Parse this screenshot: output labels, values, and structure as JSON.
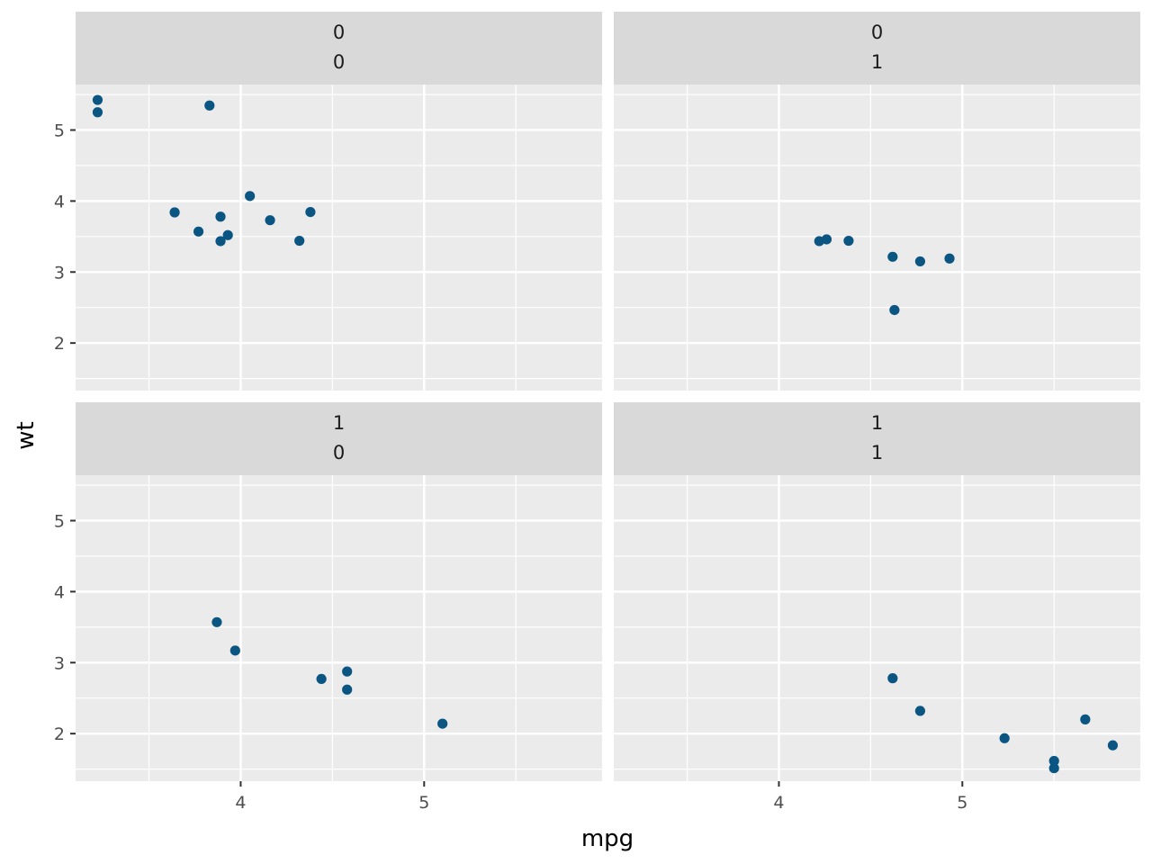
{
  "chart_data": {
    "type": "scatter",
    "xlabel": "mpg",
    "ylabel": "wt",
    "xlim": [
      3.1,
      5.97
    ],
    "ylim": [
      1.33,
      5.64
    ],
    "x_ticks": [
      4,
      5
    ],
    "x_tick_labels": [
      "4",
      "5"
    ],
    "y_ticks": [
      2,
      3,
      4,
      5
    ],
    "y_tick_labels": [
      "2",
      "3",
      "4",
      "5"
    ],
    "grid": true,
    "colors": {
      "point": "#0b5582",
      "panel_bg": "#ebebeb",
      "strip_bg": "#d9d9d9",
      "grid": "#ffffff",
      "tick_label": "#4d4d4d"
    },
    "panels": [
      {
        "strip": [
          "0",
          "0"
        ],
        "points": [
          {
            "x": 3.22,
            "y": 5.424
          },
          {
            "x": 3.22,
            "y": 5.25
          },
          {
            "x": 3.83,
            "y": 5.345
          },
          {
            "x": 3.64,
            "y": 3.84
          },
          {
            "x": 3.77,
            "y": 3.57
          },
          {
            "x": 3.89,
            "y": 3.78
          },
          {
            "x": 3.89,
            "y": 3.435
          },
          {
            "x": 3.93,
            "y": 3.52
          },
          {
            "x": 4.05,
            "y": 4.07
          },
          {
            "x": 4.16,
            "y": 3.73
          },
          {
            "x": 4.32,
            "y": 3.44
          },
          {
            "x": 4.38,
            "y": 3.845
          }
        ]
      },
      {
        "strip": [
          "0",
          "1"
        ],
        "points": [
          {
            "x": 4.22,
            "y": 3.435
          },
          {
            "x": 4.26,
            "y": 3.46
          },
          {
            "x": 4.38,
            "y": 3.44
          },
          {
            "x": 4.62,
            "y": 3.215
          },
          {
            "x": 4.63,
            "y": 2.465
          },
          {
            "x": 4.77,
            "y": 3.15
          },
          {
            "x": 4.93,
            "y": 3.19
          }
        ]
      },
      {
        "strip": [
          "1",
          "0"
        ],
        "points": [
          {
            "x": 3.87,
            "y": 3.57
          },
          {
            "x": 3.97,
            "y": 3.17
          },
          {
            "x": 4.44,
            "y": 2.77
          },
          {
            "x": 4.58,
            "y": 2.875
          },
          {
            "x": 4.58,
            "y": 2.62
          },
          {
            "x": 5.1,
            "y": 2.14
          }
        ]
      },
      {
        "strip": [
          "1",
          "1"
        ],
        "points": [
          {
            "x": 4.62,
            "y": 2.78
          },
          {
            "x": 4.77,
            "y": 2.32
          },
          {
            "x": 5.23,
            "y": 1.935
          },
          {
            "x": 5.5,
            "y": 1.615
          },
          {
            "x": 5.5,
            "y": 1.513
          },
          {
            "x": 5.67,
            "y": 2.2
          },
          {
            "x": 5.82,
            "y": 1.835
          }
        ]
      }
    ]
  }
}
